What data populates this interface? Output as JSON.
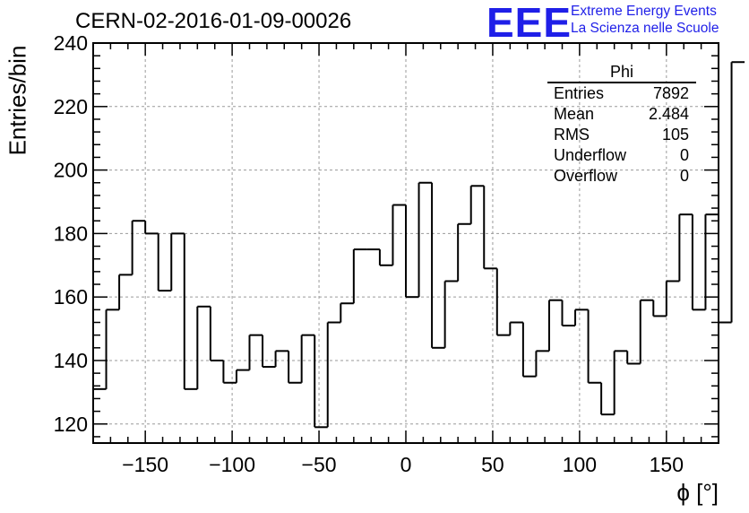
{
  "header": {
    "run_title": "CERN-02-2016-01-09-00026",
    "logo": "EEE",
    "logo_line1": "Extreme Energy Events",
    "logo_line2": "La Scienza nelle Scuole"
  },
  "stats_box": {
    "title": "Phi",
    "rows": [
      {
        "label": "Entries",
        "value": "7892"
      },
      {
        "label": "Mean",
        "value": "2.484"
      },
      {
        "label": "RMS",
        "value": "105"
      },
      {
        "label": "Underflow",
        "value": "0"
      },
      {
        "label": "Overflow",
        "value": "0"
      }
    ]
  },
  "chart_data": {
    "type": "histogram",
    "title": "CERN-02-2016-01-09-00026",
    "xlabel": "ϕ [°]",
    "ylabel": "Entries/bin",
    "xlim": [
      -180,
      180
    ],
    "ylim": [
      114,
      240
    ],
    "grid": true,
    "bin_width": 7.5,
    "x_ticks": [
      -150,
      -100,
      -50,
      0,
      50,
      100,
      150
    ],
    "x_tick_labels": [
      "−150",
      "−100",
      "−50",
      "0",
      "50",
      "100",
      "150"
    ],
    "y_ticks": [
      120,
      140,
      160,
      180,
      200,
      220,
      240
    ],
    "y_tick_labels": [
      "120",
      "140",
      "160",
      "180",
      "200",
      "220",
      "240"
    ],
    "bin_edges_start": -180,
    "values": [
      131,
      156,
      167,
      184,
      180,
      162,
      180,
      131,
      157,
      140,
      133,
      137,
      148,
      138,
      143,
      133,
      148,
      119,
      152,
      158,
      175,
      175,
      170,
      189,
      160,
      196,
      144,
      165,
      183,
      195,
      169,
      148,
      152,
      135,
      143,
      159,
      151,
      156,
      133,
      123,
      143,
      139,
      159,
      154,
      165,
      186,
      156,
      186,
      152,
      234
    ]
  }
}
